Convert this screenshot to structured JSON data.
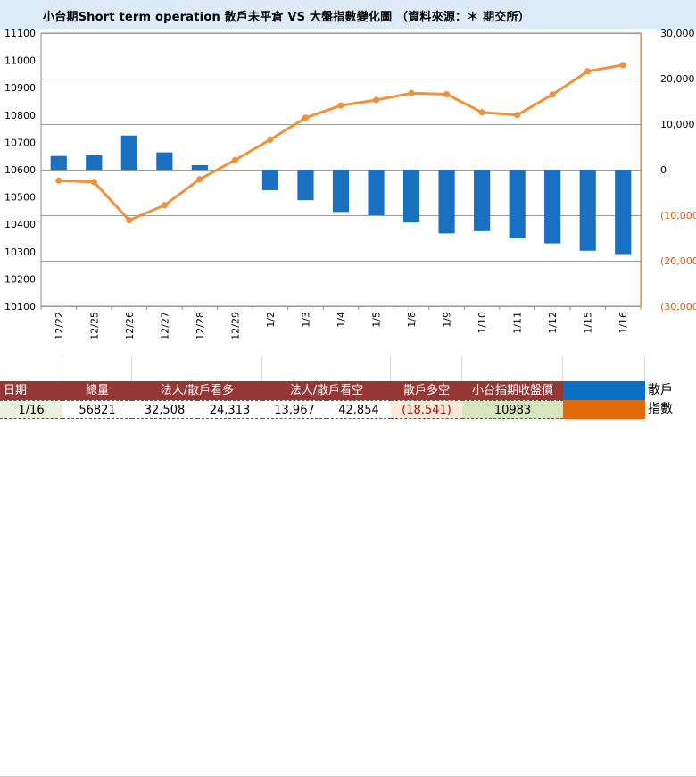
{
  "title": "小台期Short term operation 散戶未平倉 VS 大盤指數變化圖 （資料來源：＊ 期交所）",
  "chart_data": {
    "type": "bar+line",
    "categories": [
      "12/22",
      "12/25",
      "12/26",
      "12/27",
      "12/28",
      "12/29",
      "1/2",
      "1/3",
      "1/4",
      "1/5",
      "1/8",
      "1/9",
      "1/10",
      "1/11",
      "1/12",
      "1/15",
      "1/16"
    ],
    "series": [
      {
        "name": "散戶",
        "type": "bar",
        "axis": "right",
        "color": "#1a70c0",
        "values": [
          3000,
          3200,
          7500,
          3800,
          1000,
          null,
          -4500,
          -6700,
          -9300,
          -10000,
          -11600,
          -14000,
          -13500,
          -15100,
          -16200,
          -17800,
          -18541
        ]
      },
      {
        "name": "指數",
        "type": "line",
        "axis": "left",
        "color": "#f0913c",
        "values": [
          10560,
          10555,
          10415,
          10470,
          10565,
          10635,
          10710,
          10790,
          10835,
          10855,
          10880,
          10876,
          10810,
          10800,
          10875,
          10960,
          10983
        ]
      }
    ],
    "left_axis": {
      "min": 10100,
      "max": 11100,
      "ticks": [
        "10100",
        "10200",
        "10300",
        "10400",
        "10500",
        "10600",
        "10700",
        "10800",
        "10900",
        "11000",
        "11100"
      ]
    },
    "right_axis": {
      "min": -30000,
      "max": 30000,
      "ticks": [
        "(30,000)",
        "(20,000)",
        "(10,000)",
        "0",
        "10,000",
        "20,000",
        "30,000"
      ],
      "negative_color": "#e05a1c",
      "positive_color": "#000000"
    }
  },
  "table": {
    "headers": [
      "日期",
      "總量",
      "法人/散戶看多",
      "法人/散戶看空",
      "散戶多空",
      "小台指期收盤價"
    ],
    "values": {
      "date": "1/16",
      "total": "56821",
      "long_inst": "32,508",
      "long_retail": "24,313",
      "short_inst": "13,967",
      "short_retail": "42,854",
      "retail_net": "(18,541)",
      "close": "10983"
    },
    "legend": [
      {
        "label": "散戶",
        "color": "#0a6fc5"
      },
      {
        "label": "指數",
        "color": "#e26b0a"
      }
    ],
    "colors": {
      "header_bg": "#953735",
      "date_bg": "#ebf1de",
      "net_bg": "#fde9d9",
      "net_text": "#c00000",
      "close_bg": "#d8e4bc"
    }
  }
}
